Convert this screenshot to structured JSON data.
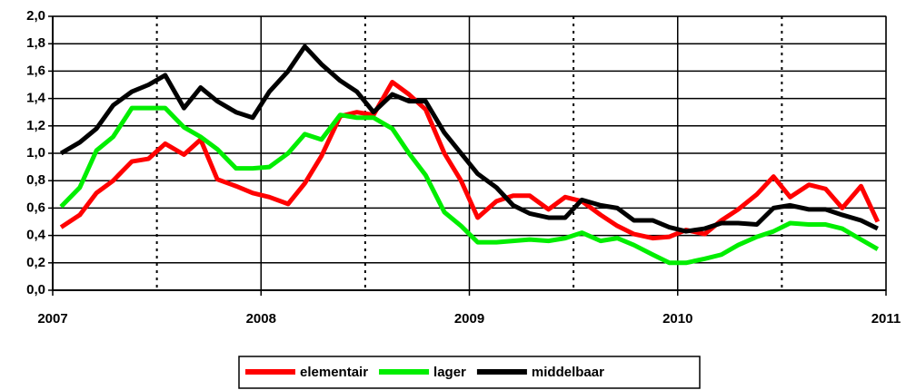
{
  "chart_data": {
    "type": "line",
    "x": [
      2007.04,
      2007.13,
      2007.21,
      2007.29,
      2007.38,
      2007.46,
      2007.54,
      2007.63,
      2007.71,
      2007.79,
      2007.88,
      2007.96,
      2008.04,
      2008.13,
      2008.21,
      2008.29,
      2008.38,
      2008.46,
      2008.54,
      2008.63,
      2008.71,
      2008.79,
      2008.88,
      2008.96,
      2009.04,
      2009.13,
      2009.21,
      2009.29,
      2009.38,
      2009.46,
      2009.54,
      2009.63,
      2009.71,
      2009.79,
      2009.88,
      2009.96,
      2010.04,
      2010.13,
      2010.21,
      2010.29,
      2010.38,
      2010.46,
      2010.54,
      2010.63,
      2010.71,
      2010.79,
      2010.88,
      2010.96
    ],
    "series": [
      {
        "name": "elementair",
        "color": "#ff0000",
        "values": [
          0.46,
          0.55,
          0.71,
          0.8,
          0.94,
          0.96,
          1.07,
          0.99,
          1.1,
          0.81,
          0.76,
          0.71,
          0.68,
          0.63,
          0.78,
          0.98,
          1.27,
          1.3,
          1.28,
          1.52,
          1.43,
          1.32,
          1.0,
          0.8,
          0.53,
          0.65,
          0.69,
          0.69,
          0.59,
          0.68,
          0.65,
          0.55,
          0.47,
          0.41,
          0.38,
          0.39,
          0.44,
          0.41,
          0.51,
          0.59,
          0.7,
          0.83,
          0.68,
          0.77,
          0.74,
          0.6,
          0.76,
          0.5
        ]
      },
      {
        "name": "lager",
        "color": "#00ee00",
        "values": [
          0.61,
          0.75,
          1.02,
          1.12,
          1.33,
          1.33,
          1.33,
          1.19,
          1.12,
          1.03,
          0.89,
          0.89,
          0.9,
          1.0,
          1.14,
          1.1,
          1.28,
          1.26,
          1.26,
          1.18,
          1.0,
          0.84,
          0.57,
          0.47,
          0.35,
          0.35,
          0.36,
          0.37,
          0.36,
          0.38,
          0.42,
          0.36,
          0.38,
          0.33,
          0.26,
          0.2,
          0.2,
          0.23,
          0.26,
          0.33,
          0.39,
          0.43,
          0.49,
          0.48,
          0.48,
          0.45,
          0.37,
          0.3
        ]
      },
      {
        "name": "middelbaar",
        "color": "#000000",
        "values": [
          1.0,
          1.08,
          1.18,
          1.35,
          1.45,
          1.5,
          1.57,
          1.33,
          1.48,
          1.38,
          1.3,
          1.26,
          1.45,
          1.6,
          1.78,
          1.65,
          1.53,
          1.45,
          1.3,
          1.43,
          1.38,
          1.38,
          1.15,
          1.0,
          0.85,
          0.75,
          0.62,
          0.56,
          0.53,
          0.53,
          0.66,
          0.62,
          0.6,
          0.51,
          0.51,
          0.46,
          0.43,
          0.45,
          0.49,
          0.49,
          0.48,
          0.6,
          0.62,
          0.59,
          0.59,
          0.55,
          0.51,
          0.45
        ]
      }
    ],
    "xlim": [
      2007,
      2011
    ],
    "xticks": [
      2007,
      2008,
      2009,
      2010,
      2011
    ],
    "x_minor_ticks": [
      2007.5,
      2008.5,
      2009.5,
      2010.5
    ],
    "ylim": [
      0,
      2
    ],
    "yticks": [
      {
        "value": 0,
        "label": "0,0"
      },
      {
        "value": 0.2,
        "label": "0,2"
      },
      {
        "value": 0.4,
        "label": "0,4"
      },
      {
        "value": 0.6,
        "label": "0,6"
      },
      {
        "value": 0.8,
        "label": "0,8"
      },
      {
        "value": 1.0,
        "label": "1,0"
      },
      {
        "value": 1.2,
        "label": "1,2"
      },
      {
        "value": 1.4,
        "label": "1,4"
      },
      {
        "value": 1.6,
        "label": "1,6"
      },
      {
        "value": 1.8,
        "label": "1,8"
      },
      {
        "value": 2.0,
        "label": "2,0"
      }
    ],
    "grid": true,
    "legend": "bottom"
  }
}
